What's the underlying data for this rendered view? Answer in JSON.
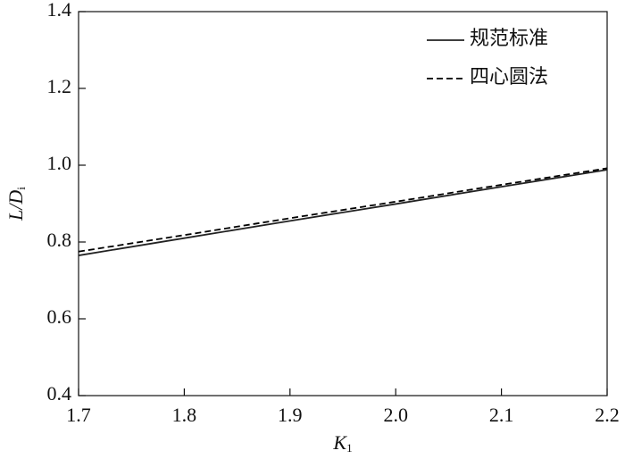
{
  "chart_data": {
    "type": "line",
    "x_label": {
      "main": "K",
      "sub": "1"
    },
    "y_label": {
      "main": "L/D",
      "sub": "i"
    },
    "x": [
      1.7,
      1.8,
      1.9,
      2.0,
      2.1,
      2.2
    ],
    "series": [
      {
        "name": "规范标准",
        "color": "#222222",
        "dash": "solid",
        "values": [
          0.765,
          0.81,
          0.855,
          0.899,
          0.944,
          0.988
        ]
      },
      {
        "name": "四心圆法",
        "color": "#000000",
        "dash": "dashed",
        "values": [
          0.775,
          0.818,
          0.862,
          0.905,
          0.949,
          0.992
        ]
      }
    ],
    "xlim": [
      1.7,
      2.2
    ],
    "xticks": [
      1.7,
      1.8,
      1.9,
      {
        "value": 2,
        "label": "2.0"
      },
      2.1,
      2.2
    ],
    "ylim": [
      0.4,
      1.4
    ],
    "yticks": [
      0.4,
      0.6,
      0.8,
      {
        "value": 1,
        "label": "1.0"
      },
      1.2,
      1.4
    ],
    "legend": "upper right"
  }
}
